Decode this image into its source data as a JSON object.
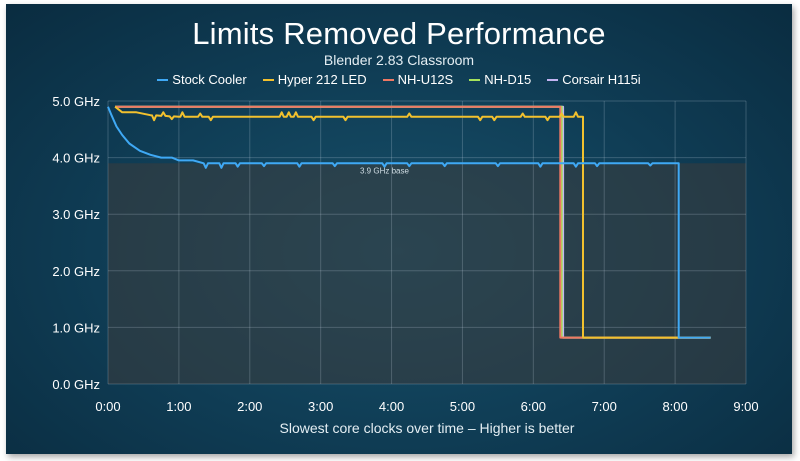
{
  "chart_data": {
    "type": "line",
    "title": "Limits Removed Performance",
    "subtitle": "Blender 2.83 Classroom",
    "xlabel": "Slowest core clocks over time – Higher is better",
    "ylabel": "",
    "xlim": [
      0,
      9
    ],
    "ylim": [
      0,
      5
    ],
    "x_ticks": [
      "0:00",
      "1:00",
      "2:00",
      "3:00",
      "4:00",
      "5:00",
      "6:00",
      "7:00",
      "8:00",
      "9:00"
    ],
    "y_ticks": [
      "0.0 GHz",
      "1.0 GHz",
      "2.0 GHz",
      "3.0 GHz",
      "4.0 GHz",
      "5.0 GHz"
    ],
    "grid": true,
    "legend_position": "top-center",
    "annotation": {
      "text": "3.9 GHz base",
      "value": 3.9
    },
    "series": [
      {
        "name": "Stock Cooler",
        "color": "#3fa9f5",
        "points": [
          [
            0,
            4.9
          ],
          [
            0.05,
            4.75
          ],
          [
            0.12,
            4.55
          ],
          [
            0.2,
            4.4
          ],
          [
            0.3,
            4.25
          ],
          [
            0.45,
            4.12
          ],
          [
            0.6,
            4.05
          ],
          [
            0.75,
            4.0
          ],
          [
            0.9,
            4.0
          ],
          [
            1.0,
            3.95
          ],
          [
            1.2,
            3.95
          ],
          [
            1.35,
            3.9
          ],
          [
            2.0,
            3.9
          ],
          [
            3.0,
            3.9
          ],
          [
            4.0,
            3.9
          ],
          [
            5.0,
            3.9
          ],
          [
            6.0,
            3.9
          ],
          [
            7.0,
            3.9
          ],
          [
            8.05,
            3.9
          ],
          [
            8.05,
            0.82
          ],
          [
            8.5,
            0.82
          ]
        ],
        "dips": [
          [
            1.38,
            3.82
          ],
          [
            1.6,
            3.82
          ],
          [
            1.83,
            3.84
          ],
          [
            2.2,
            3.85
          ],
          [
            2.7,
            3.84
          ],
          [
            3.2,
            3.85
          ],
          [
            3.9,
            3.84
          ],
          [
            4.25,
            3.85
          ],
          [
            4.75,
            3.85
          ],
          [
            5.5,
            3.85
          ],
          [
            6.1,
            3.84
          ],
          [
            6.6,
            3.84
          ],
          [
            6.9,
            3.85
          ],
          [
            7.65,
            3.86
          ]
        ]
      },
      {
        "name": "Hyper 212 LED",
        "color": "#f2c12e",
        "points": [
          [
            0.1,
            4.9
          ],
          [
            0.2,
            4.8
          ],
          [
            0.4,
            4.8
          ],
          [
            0.6,
            4.75
          ],
          [
            1.0,
            4.72
          ],
          [
            2.0,
            4.72
          ],
          [
            3.0,
            4.72
          ],
          [
            4.0,
            4.72
          ],
          [
            5.0,
            4.72
          ],
          [
            6.0,
            4.72
          ],
          [
            6.7,
            4.72
          ],
          [
            6.7,
            0.82
          ],
          [
            8.5,
            0.82
          ]
        ],
        "spikes": [
          [
            0.65,
            4.66
          ],
          [
            0.78,
            4.8
          ],
          [
            0.9,
            4.68
          ],
          [
            1.05,
            4.8
          ],
          [
            1.3,
            4.78
          ],
          [
            1.45,
            4.66
          ],
          [
            2.45,
            4.8
          ],
          [
            2.55,
            4.8
          ],
          [
            2.65,
            4.8
          ],
          [
            2.9,
            4.66
          ],
          [
            3.35,
            4.66
          ],
          [
            4.25,
            4.78
          ],
          [
            5.25,
            4.66
          ],
          [
            5.45,
            4.66
          ],
          [
            5.85,
            4.78
          ],
          [
            6.2,
            4.66
          ],
          [
            6.4,
            4.78
          ],
          [
            6.6,
            4.8
          ]
        ]
      },
      {
        "name": "NH-U12S",
        "color": "#f07864",
        "points": [
          [
            0.1,
            4.9
          ],
          [
            6.38,
            4.9
          ],
          [
            6.38,
            0.82
          ],
          [
            8.5,
            0.82
          ]
        ]
      },
      {
        "name": "NH-D15",
        "color": "#a6e35c",
        "points": [
          [
            0.1,
            4.9
          ],
          [
            6.4,
            4.9
          ],
          [
            6.4,
            0.82
          ],
          [
            8.5,
            0.82
          ]
        ]
      },
      {
        "name": "Corsair H115i",
        "color": "#c3b4f2",
        "points": [
          [
            0.1,
            4.9
          ],
          [
            6.42,
            4.9
          ],
          [
            6.42,
            0.82
          ],
          [
            8.5,
            0.82
          ]
        ]
      }
    ]
  }
}
